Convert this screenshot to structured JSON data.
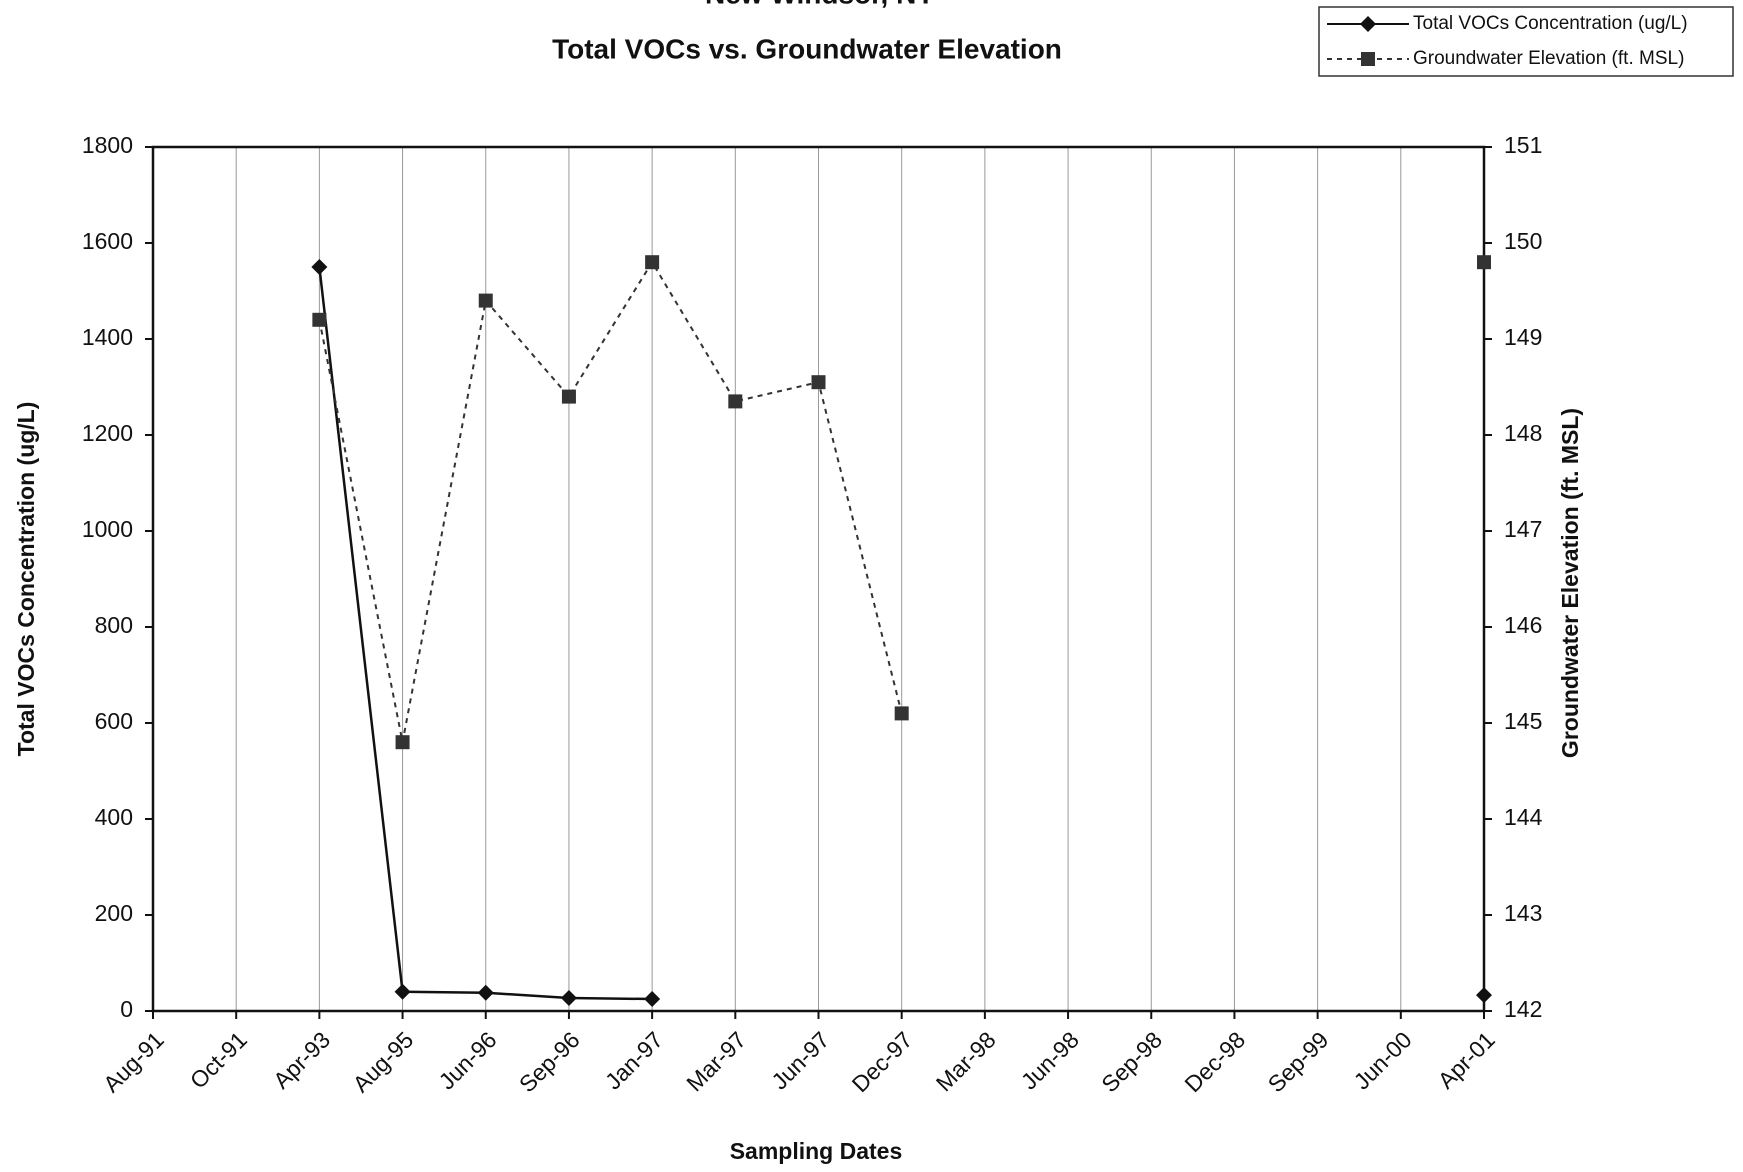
{
  "chart_data": {
    "type": "line",
    "title": "Total VOCs vs. Groundwater Elevation",
    "supertitle": "New Windsor, NY",
    "xlabel": "Sampling Dates",
    "ylabel": "Total VOCs Concentration (ug/L)",
    "y2label": "Groundwater Elevation (ft. MSL)",
    "categories": [
      "Aug-91",
      "Oct-91",
      "Apr-93",
      "Aug-95",
      "Jun-96",
      "Sep-96",
      "Jan-97",
      "Mar-97",
      "Jun-97",
      "Dec-97",
      "Mar-98",
      "Jun-98",
      "Sep-98",
      "Dec-98",
      "Sep-99",
      "Jun-00",
      "Apr-01"
    ],
    "series": [
      {
        "name": "Total VOCs Concentration (ug/L)",
        "color": "#111111",
        "marker": "diamond",
        "dash": "solid",
        "values": [
          null,
          null,
          1550,
          40,
          38,
          27,
          25,
          null,
          null,
          null,
          null,
          null,
          null,
          null,
          null,
          null,
          33
        ]
      },
      {
        "name": "Groundwater Elevation (ft. MSL)",
        "color": "#333333",
        "marker": "square",
        "dash": "dotted",
        "axis": "y2",
        "values": [
          null,
          null,
          149.2,
          144.8,
          149.4,
          148.4,
          149.8,
          148.35,
          148.55,
          145.1,
          null,
          null,
          null,
          null,
          null,
          null,
          149.8
        ]
      }
    ],
    "ylim": [
      0,
      1800
    ],
    "yticks": [
      0,
      200,
      400,
      600,
      800,
      1000,
      1200,
      1400,
      1600,
      1800
    ],
    "y2lim": [
      142,
      151
    ],
    "y2ticks": [
      142,
      143,
      144,
      145,
      146,
      147,
      148,
      149,
      150,
      151
    ],
    "grid": true,
    "legend": "upper right"
  }
}
